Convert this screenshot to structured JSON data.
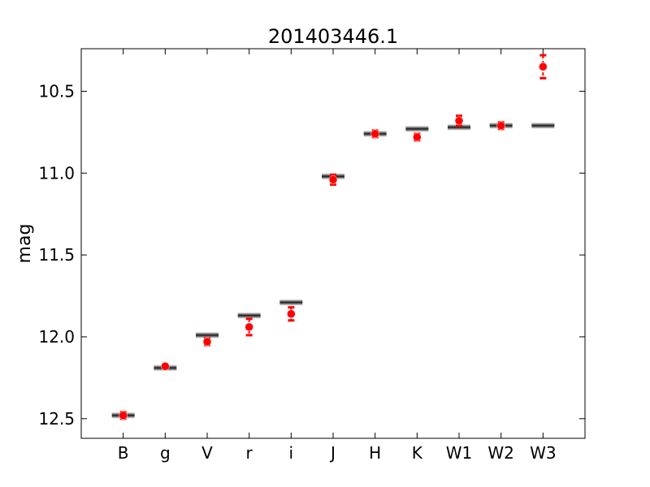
{
  "chart_data": {
    "type": "scatter",
    "title": "201403446.1",
    "xlabel": "",
    "ylabel": "mag",
    "categories": [
      "B",
      "g",
      "V",
      "r",
      "i",
      "J",
      "H",
      "K",
      "W1",
      "W2",
      "W3"
    ],
    "y_inverted": true,
    "ylim": [
      12.62,
      10.24
    ],
    "yticks": [
      10.5,
      11.0,
      11.5,
      12.0,
      12.5
    ],
    "ytick_labels": [
      "10.5",
      "11.0",
      "11.5",
      "12.0",
      "12.5"
    ],
    "grid": false,
    "series": [
      {
        "marker": "horizontal-line",
        "color": "#333333",
        "values": [
          12.48,
          12.19,
          11.99,
          11.87,
          11.79,
          11.02,
          10.76,
          10.73,
          10.72,
          10.71,
          10.71
        ]
      },
      {
        "marker": "circle-with-errorbar",
        "color": "#ff0000",
        "values": [
          12.48,
          12.18,
          12.03,
          11.94,
          11.86,
          11.04,
          10.76,
          10.78,
          10.68,
          10.71,
          10.35
        ],
        "errors": [
          0.02,
          0.01,
          0.02,
          0.05,
          0.04,
          0.03,
          0.02,
          0.02,
          0.03,
          0.02,
          0.07
        ]
      }
    ]
  }
}
